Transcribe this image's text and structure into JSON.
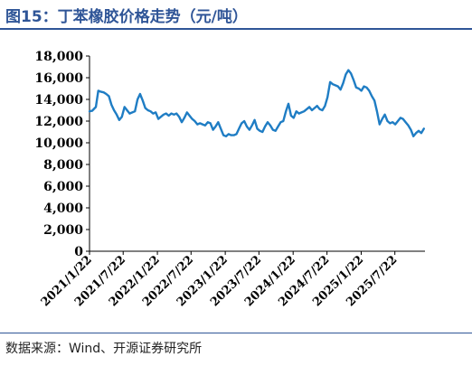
{
  "header": {
    "title": "图15：丁苯橡胶价格走势（元/吨）"
  },
  "footer": {
    "source": "数据来源：Wind、开源证券研究所"
  },
  "colors": {
    "line": "#1f7dc4",
    "title": "#2f5597",
    "axis": "#000000"
  },
  "chart_data": {
    "type": "line",
    "title": "图15：丁苯橡胶价格走势（元/吨）",
    "xlabel": "",
    "ylabel": "",
    "ylim": [
      0,
      18000
    ],
    "yticks": [
      0,
      2000,
      4000,
      6000,
      8000,
      10000,
      12000,
      14000,
      16000,
      18000
    ],
    "ytick_labels": [
      "0",
      "2,000",
      "4,000",
      "6,000",
      "8,000",
      "10,000",
      "12,000",
      "14,000",
      "16,000",
      "18,000"
    ],
    "xlim": [
      "2021-01-22",
      "2025-12-31"
    ],
    "xtick_labels": [
      "2021/1/22",
      "2021/7/22",
      "2022/1/22",
      "2022/7/22",
      "2023/1/22",
      "2023/7/22",
      "2024/1/22",
      "2024/7/22",
      "2025/1/22",
      "2025/7/22"
    ],
    "xtick_dates": [
      "2021-01-22",
      "2021-07-22",
      "2022-01-22",
      "2022-07-22",
      "2023-01-22",
      "2023-07-22",
      "2024-01-22",
      "2024-07-22",
      "2025-01-22",
      "2025-07-22"
    ],
    "grid": false,
    "legend": "none",
    "series": [
      {
        "x": [
          "2021-01-22",
          "2021-02-05",
          "2021-02-25",
          "2021-03-10",
          "2021-03-25",
          "2021-04-08",
          "2021-04-22",
          "2021-05-06",
          "2021-05-20",
          "2021-06-03",
          "2021-06-17",
          "2021-07-01",
          "2021-07-15",
          "2021-07-29",
          "2021-08-12",
          "2021-08-26",
          "2021-09-09",
          "2021-09-23",
          "2021-10-07",
          "2021-10-21",
          "2021-11-04",
          "2021-11-18",
          "2021-12-02",
          "2021-12-16",
          "2021-12-30",
          "2022-01-13",
          "2022-01-27",
          "2022-02-10",
          "2022-02-24",
          "2022-03-10",
          "2022-03-24",
          "2022-04-07",
          "2022-04-21",
          "2022-05-05",
          "2022-05-19",
          "2022-06-02",
          "2022-06-16",
          "2022-06-30",
          "2022-07-14",
          "2022-07-28",
          "2022-08-11",
          "2022-08-25",
          "2022-09-08",
          "2022-09-22",
          "2022-10-06",
          "2022-10-20",
          "2022-11-03",
          "2022-11-17",
          "2022-12-01",
          "2022-12-15",
          "2022-12-29",
          "2023-01-12",
          "2023-01-26",
          "2023-02-09",
          "2023-02-23",
          "2023-03-09",
          "2023-03-23",
          "2023-04-06",
          "2023-04-20",
          "2023-05-04",
          "2023-05-18",
          "2023-06-01",
          "2023-06-15",
          "2023-06-29",
          "2023-07-13",
          "2023-07-27",
          "2023-08-10",
          "2023-08-24",
          "2023-09-07",
          "2023-09-21",
          "2023-10-05",
          "2023-10-19",
          "2023-11-02",
          "2023-11-16",
          "2023-11-30",
          "2023-12-14",
          "2023-12-28",
          "2024-01-11",
          "2024-01-25",
          "2024-02-08",
          "2024-02-22",
          "2024-03-07",
          "2024-03-21",
          "2024-04-04",
          "2024-04-18",
          "2024-05-02",
          "2024-05-16",
          "2024-05-30",
          "2024-06-13",
          "2024-06-27",
          "2024-07-11",
          "2024-07-25",
          "2024-08-08",
          "2024-08-22",
          "2024-09-05",
          "2024-09-19",
          "2024-10-03",
          "2024-10-17",
          "2024-10-31",
          "2024-11-14",
          "2024-11-28",
          "2024-12-12",
          "2024-12-26",
          "2025-01-09",
          "2025-01-23",
          "2025-02-06",
          "2025-02-20",
          "2025-03-06",
          "2025-03-20",
          "2025-04-03",
          "2025-04-17",
          "2025-05-01",
          "2025-05-15",
          "2025-05-29",
          "2025-06-12",
          "2025-06-26",
          "2025-07-10",
          "2025-07-24",
          "2025-08-07",
          "2025-08-21",
          "2025-09-04",
          "2025-09-18",
          "2025-10-02",
          "2025-10-16",
          "2025-10-30",
          "2025-11-13",
          "2025-11-27",
          "2025-12-11",
          "2025-12-25"
        ],
        "values": [
          12900,
          12950,
          13300,
          14800,
          14700,
          14650,
          14500,
          14300,
          13500,
          13000,
          12600,
          12100,
          12400,
          13300,
          13000,
          12700,
          12800,
          12900,
          14000,
          14500,
          13900,
          13200,
          13000,
          12900,
          12700,
          12800,
          12200,
          12400,
          12600,
          12700,
          12500,
          12700,
          12600,
          12700,
          12400,
          11900,
          12300,
          12800,
          12500,
          12200,
          12000,
          11700,
          11800,
          11700,
          11600,
          11900,
          11800,
          11200,
          11500,
          11900,
          11300,
          10700,
          10600,
          10800,
          10700,
          10700,
          10800,
          11300,
          11800,
          12000,
          11500,
          11200,
          11600,
          12100,
          11300,
          11100,
          11000,
          11500,
          11900,
          11600,
          11200,
          11100,
          11500,
          11900,
          12000,
          12900,
          13600,
          12500,
          12300,
          12900,
          12700,
          12800,
          12900,
          13100,
          13300,
          13000,
          13200,
          13400,
          13100,
          13000,
          13400,
          14200,
          15600,
          15400,
          15300,
          15200,
          14900,
          15500,
          16300,
          16700,
          16400,
          15800,
          15100,
          15000,
          14800,
          15200,
          15100,
          14800,
          14300,
          13900,
          12900,
          11700,
          12200,
          12600,
          12000,
          11800,
          11900,
          11700,
          12000,
          12300,
          12200,
          11900,
          11600,
          11200,
          10600,
          10900,
          11100,
          10900,
          11300
        ]
      }
    ]
  }
}
